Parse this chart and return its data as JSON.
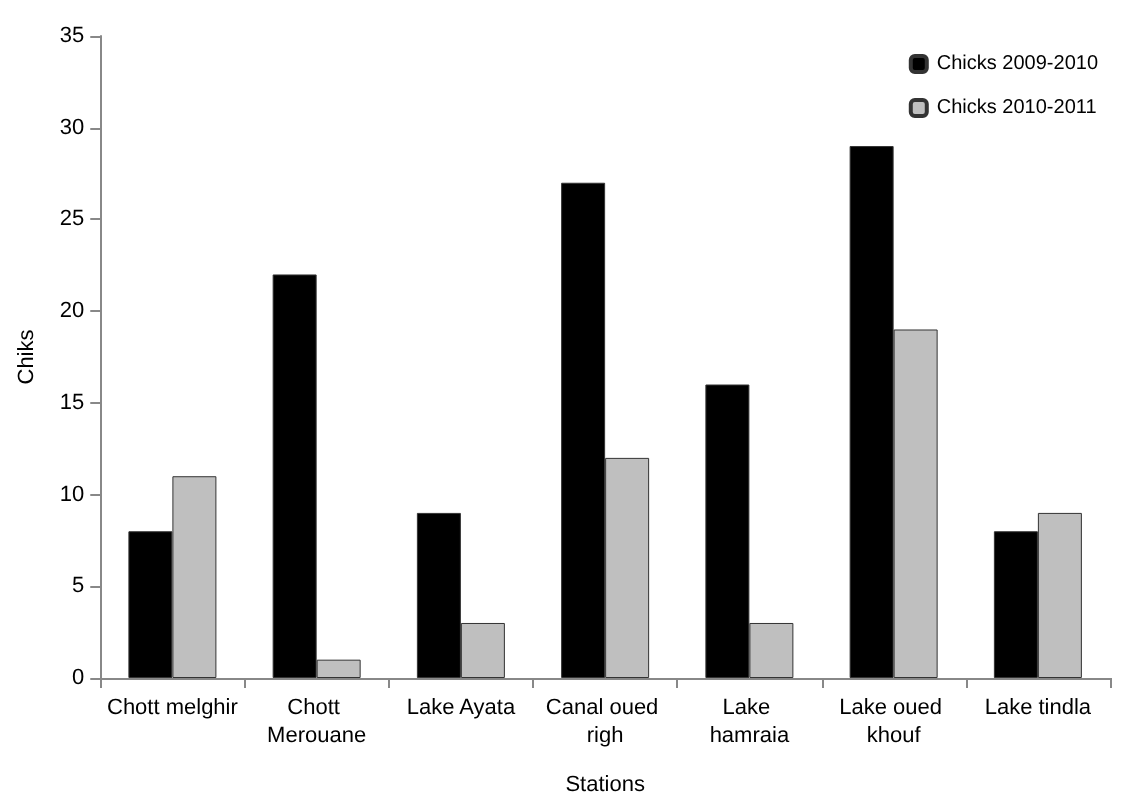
{
  "chart_data": {
    "type": "bar",
    "xlabel": "Stations",
    "ylabel": "Chiks",
    "categories": [
      "Chott melghir",
      "Chott Merouane",
      "Lake Ayata",
      "Canal oued righ",
      "Lake hamraia",
      "Lake oued khouf",
      "Lake tindla"
    ],
    "series": [
      {
        "name": "Chicks 2009-2010",
        "color": "#000000",
        "values": [
          8,
          22,
          9,
          27,
          16,
          29,
          8
        ]
      },
      {
        "name": "Chicks 2010-2011",
        "color": "#bfbfbf",
        "values": [
          11,
          1,
          3,
          12,
          3,
          19,
          9
        ]
      }
    ],
    "ylim": [
      0,
      35
    ],
    "yticks": [
      0,
      5,
      10,
      15,
      20,
      25,
      30,
      35
    ],
    "grid": false,
    "legend": "top right"
  }
}
